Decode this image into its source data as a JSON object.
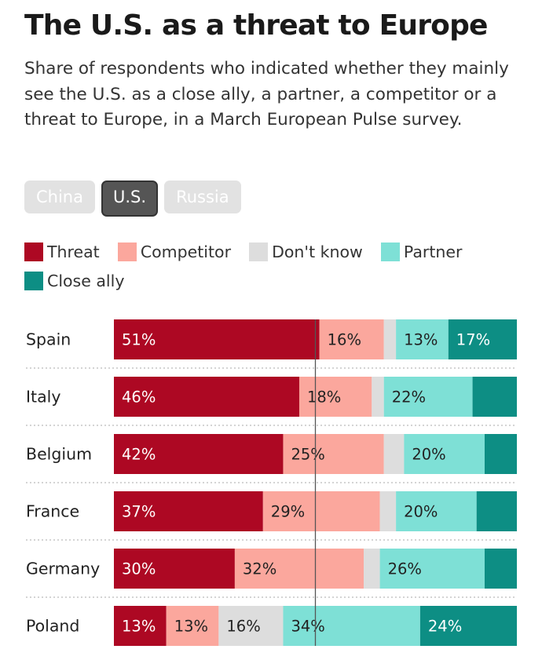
{
  "title": "The U.S. as a threat to Europe",
  "subtitle": "Share of respondents who indicated whether they mainly see the U.S. as a close ally, a partner, a competitor or a threat to Europe, in a March European Pulse survey.",
  "tabs": [
    {
      "label": "China",
      "active": false
    },
    {
      "label": "U.S.",
      "active": true
    },
    {
      "label": "Russia",
      "active": false
    }
  ],
  "colors": {
    "threat": "#ad0823",
    "competitor": "#fba79d",
    "dont_know": "#dddddd",
    "partner": "#7ee0d6",
    "close_ally": "#0d8e84"
  },
  "chart_data": {
    "type": "bar",
    "orientation": "horizontal",
    "stacked": true,
    "title": "The U.S. as a threat to Europe",
    "categories": [
      "Spain",
      "Italy",
      "Belgium",
      "France",
      "Germany",
      "Poland"
    ],
    "series": [
      {
        "name": "Threat",
        "key": "threat",
        "values": [
          51,
          46,
          42,
          37,
          30,
          13
        ],
        "labels": [
          "51%",
          "46%",
          "42%",
          "37%",
          "30%",
          "13%"
        ]
      },
      {
        "name": "Competitor",
        "key": "competitor",
        "values": [
          16,
          18,
          25,
          29,
          32,
          13
        ],
        "labels": [
          "16%",
          "18%",
          "25%",
          "29%",
          "32%",
          "13%"
        ]
      },
      {
        "name": "Don't know",
        "key": "dont_know",
        "values": [
          3,
          3,
          5,
          4,
          4,
          16
        ],
        "labels": [
          "",
          "",
          "",
          "",
          "",
          "16%"
        ]
      },
      {
        "name": "Partner",
        "key": "partner",
        "values": [
          13,
          22,
          20,
          20,
          26,
          34
        ],
        "labels": [
          "13%",
          "22%",
          "20%",
          "20%",
          "26%",
          "34%"
        ]
      },
      {
        "name": "Close ally",
        "key": "close_ally",
        "values": [
          17,
          11,
          8,
          10,
          8,
          24
        ],
        "labels": [
          "17%",
          "",
          "",
          "",
          "",
          "24%"
        ]
      }
    ],
    "xlim": [
      0,
      100
    ],
    "reference_line": 50,
    "legend_position": "top"
  }
}
